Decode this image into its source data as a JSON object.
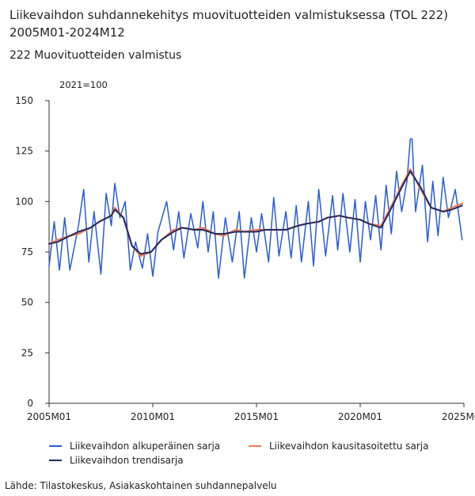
{
  "title": "Liikevaihdon suhdannekehitys muovituotteiden valmistuksessa (TOL 222) 2005M01-2024M12",
  "subtitle": "222 Muovituotteiden valmistus",
  "unit_label": "2021=100",
  "source": "Lähde: Tilastokeskus, Asiakaskohtainen suhdannepalvelu",
  "colors": {
    "original": "#2a5bd7",
    "seasonal": "#f07a57",
    "trend": "#202a5e",
    "axis": "#333333",
    "grid": "#e3e3e3"
  },
  "chart_data": {
    "type": "line",
    "x_start": "2005M01",
    "x_end": "2024M12",
    "x_ticks": [
      "2005M01",
      "2010M01",
      "2015M01",
      "2020M01",
      "2025M01"
    ],
    "y_ticks": [
      0,
      25,
      50,
      75,
      100,
      125,
      150
    ],
    "ylim": [
      0,
      150
    ],
    "grid": false,
    "legend_position": "bottom",
    "series": [
      {
        "name": "Liikevaihdon alkuperäinen sarja",
        "key": "original",
        "anchors": [
          [
            "2005M01",
            68
          ],
          [
            "2005M04",
            90
          ],
          [
            "2005M07",
            66
          ],
          [
            "2005M10",
            92
          ],
          [
            "2006M01",
            66
          ],
          [
            "2006M06",
            88
          ],
          [
            "2006M09",
            106
          ],
          [
            "2006M12",
            70
          ],
          [
            "2007M03",
            95
          ],
          [
            "2007M07",
            64
          ],
          [
            "2007M10",
            104
          ],
          [
            "2008M01",
            88
          ],
          [
            "2008M03",
            109
          ],
          [
            "2008M06",
            92
          ],
          [
            "2008M09",
            100
          ],
          [
            "2008M12",
            66
          ],
          [
            "2009M03",
            80
          ],
          [
            "2009M07",
            67
          ],
          [
            "2009M10",
            84
          ],
          [
            "2010M01",
            63
          ],
          [
            "2010M04",
            85
          ],
          [
            "2010M09",
            100
          ],
          [
            "2011M01",
            76
          ],
          [
            "2011M04",
            95
          ],
          [
            "2011M07",
            72
          ],
          [
            "2011M11",
            94
          ],
          [
            "2012M03",
            77
          ],
          [
            "2012M06",
            100
          ],
          [
            "2012M09",
            75
          ],
          [
            "2012M12",
            95
          ],
          [
            "2013M03",
            62
          ],
          [
            "2013M07",
            92
          ],
          [
            "2013M11",
            70
          ],
          [
            "2014M03",
            95
          ],
          [
            "2014M06",
            62
          ],
          [
            "2014M10",
            92
          ],
          [
            "2015M01",
            75
          ],
          [
            "2015M04",
            94
          ],
          [
            "2015M08",
            70
          ],
          [
            "2015M11",
            102
          ],
          [
            "2016M02",
            73
          ],
          [
            "2016M06",
            95
          ],
          [
            "2016M09",
            72
          ],
          [
            "2016M12",
            98
          ],
          [
            "2017M03",
            70
          ],
          [
            "2017M07",
            100
          ],
          [
            "2017M10",
            68
          ],
          [
            "2018M01",
            106
          ],
          [
            "2018M05",
            73
          ],
          [
            "2018M09",
            103
          ],
          [
            "2018M12",
            76
          ],
          [
            "2019M03",
            104
          ],
          [
            "2019M07",
            75
          ],
          [
            "2019M10",
            101
          ],
          [
            "2020M01",
            70
          ],
          [
            "2020M04",
            100
          ],
          [
            "2020M07",
            81
          ],
          [
            "2020M10",
            103
          ],
          [
            "2021M01",
            76
          ],
          [
            "2021M04",
            108
          ],
          [
            "2021M07",
            84
          ],
          [
            "2021M10",
            115
          ],
          [
            "2022M01",
            95
          ],
          [
            "2022M04",
            110
          ],
          [
            "2022M06",
            131
          ],
          [
            "2022M07",
            131
          ],
          [
            "2022M09",
            95
          ],
          [
            "2023M01",
            118
          ],
          [
            "2023M04",
            80
          ],
          [
            "2023M07",
            110
          ],
          [
            "2023M10",
            83
          ],
          [
            "2024M01",
            112
          ],
          [
            "2024M04",
            92
          ],
          [
            "2024M08",
            106
          ],
          [
            "2024M12",
            81
          ]
        ]
      },
      {
        "name": "Liikevaihdon kausitasoitettu sarja",
        "key": "seasonal",
        "anchors": [
          [
            "2005M01",
            79
          ],
          [
            "2005M06",
            81
          ],
          [
            "2006M01",
            83
          ],
          [
            "2006M06",
            84
          ],
          [
            "2007M01",
            87
          ],
          [
            "2007M06",
            90
          ],
          [
            "2008M01",
            93
          ],
          [
            "2008M03",
            97
          ],
          [
            "2008M08",
            92
          ],
          [
            "2009M01",
            78
          ],
          [
            "2009M06",
            73
          ],
          [
            "2009M12",
            75
          ],
          [
            "2010M06",
            81
          ],
          [
            "2011M01",
            86
          ],
          [
            "2011M06",
            87
          ],
          [
            "2012M01",
            86
          ],
          [
            "2012M06",
            87
          ],
          [
            "2013M01",
            84
          ],
          [
            "2013M06",
            83
          ],
          [
            "2014M01",
            86
          ],
          [
            "2014M06",
            85
          ],
          [
            "2015M01",
            86
          ],
          [
            "2015M06",
            86
          ],
          [
            "2016M01",
            86
          ],
          [
            "2016M06",
            86
          ],
          [
            "2017M01",
            88
          ],
          [
            "2017M06",
            89
          ],
          [
            "2018M01",
            90
          ],
          [
            "2018M06",
            92
          ],
          [
            "2019M01",
            93
          ],
          [
            "2019M06",
            92
          ],
          [
            "2020M01",
            91
          ],
          [
            "2020M06",
            89
          ],
          [
            "2021M01",
            88
          ],
          [
            "2021M06",
            96
          ],
          [
            "2022M01",
            108
          ],
          [
            "2022M06",
            116
          ],
          [
            "2022M12",
            106
          ],
          [
            "2023M06",
            97
          ],
          [
            "2024M01",
            95
          ],
          [
            "2024M06",
            97
          ],
          [
            "2024M12",
            99
          ]
        ]
      },
      {
        "name": "Liikevaihdon trendisarja",
        "key": "trend",
        "anchors": [
          [
            "2005M01",
            79
          ],
          [
            "2005M06",
            80
          ],
          [
            "2006M01",
            83
          ],
          [
            "2006M06",
            85
          ],
          [
            "2007M01",
            87
          ],
          [
            "2007M06",
            90
          ],
          [
            "2008M01",
            93
          ],
          [
            "2008M03",
            96
          ],
          [
            "2008M08",
            92
          ],
          [
            "2009M01",
            78
          ],
          [
            "2009M06",
            74
          ],
          [
            "2009M12",
            75
          ],
          [
            "2010M06",
            81
          ],
          [
            "2011M01",
            85
          ],
          [
            "2011M06",
            87
          ],
          [
            "2012M01",
            86
          ],
          [
            "2012M06",
            86
          ],
          [
            "2013M01",
            84
          ],
          [
            "2013M06",
            84
          ],
          [
            "2014M01",
            85
          ],
          [
            "2014M06",
            85
          ],
          [
            "2015M01",
            85
          ],
          [
            "2015M06",
            86
          ],
          [
            "2016M01",
            86
          ],
          [
            "2016M06",
            86
          ],
          [
            "2017M01",
            88
          ],
          [
            "2017M06",
            89
          ],
          [
            "2018M01",
            90
          ],
          [
            "2018M06",
            92
          ],
          [
            "2019M01",
            93
          ],
          [
            "2019M06",
            92
          ],
          [
            "2020M01",
            91
          ],
          [
            "2020M06",
            89
          ],
          [
            "2021M01",
            87
          ],
          [
            "2021M06",
            95
          ],
          [
            "2022M01",
            107
          ],
          [
            "2022M06",
            115
          ],
          [
            "2022M12",
            107
          ],
          [
            "2023M06",
            97
          ],
          [
            "2024M01",
            95
          ],
          [
            "2024M06",
            96
          ],
          [
            "2024M12",
            98
          ]
        ]
      }
    ]
  }
}
